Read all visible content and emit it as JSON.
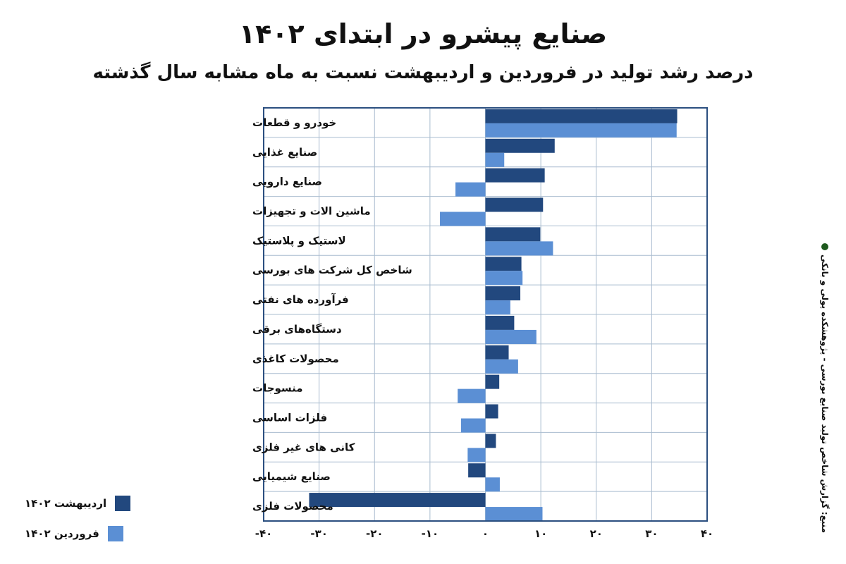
{
  "header": {
    "title": "صنایع پیشرو در ابتدای ۱۴۰۲",
    "subtitle": "درصد رشد تولید در فروردین و اردیبهشت نسبت به ماه مشابه سال گذشته"
  },
  "source": "منبع: گزارش شاخص تولید صنایع بورسی - پژوهشکده پولی و بانکی",
  "colors": {
    "ordibehesht": "#22487e",
    "farvardin": "#5b8fd4",
    "grid": "#a9bccf",
    "frame": "#2b4f80"
  },
  "chart_data": {
    "type": "bar",
    "orientation": "horizontal",
    "title": "صنایع پیشرو در ابتدای ۱۴۰۲",
    "subtitle": "درصد رشد تولید در فروردین و اردیبهشت نسبت به ماه مشابه سال گذشته",
    "categories": [
      "خودرو و قطعات",
      "صنایع غذایی",
      "صنایع دارویی",
      "ماشین الات و تجهیزات",
      "لاستیک و پلاستیک",
      "شاخص کل شرکت های بورسی",
      "فرآورده های نفتی",
      "دستگاه‌های برقی",
      "محصولات کاغذی",
      "منسوجات",
      "فلزات اساسی",
      "کانی های غیر فلزی",
      "صنایع شیمیایی",
      "محصولات فلزی"
    ],
    "series": [
      {
        "name": "اردیبهشت ۱۴۰۲",
        "values": [
          34.6,
          12.5,
          10.7,
          10.4,
          9.9,
          6.5,
          6.3,
          5.2,
          4.2,
          2.5,
          2.3,
          1.9,
          -3.1,
          -31.8
        ]
      },
      {
        "name": "فروردین ۱۴۰۲",
        "values": [
          34.5,
          3.4,
          -5.4,
          -8.2,
          12.2,
          6.7,
          4.5,
          9.2,
          5.9,
          -5.0,
          -4.4,
          -3.2,
          2.6,
          10.3
        ]
      }
    ],
    "xlim": [
      -40,
      40
    ],
    "xticks": [
      -40,
      -30,
      -20,
      -10,
      0,
      10,
      20,
      30,
      40
    ],
    "xtick_labels": [
      "-۴۰",
      "-۳۰",
      "-۲۰",
      "-۱۰",
      "۰",
      "۱۰",
      "۲۰",
      "۳۰",
      "۴۰"
    ],
    "grid": true,
    "legend_position": "bottom-left"
  }
}
